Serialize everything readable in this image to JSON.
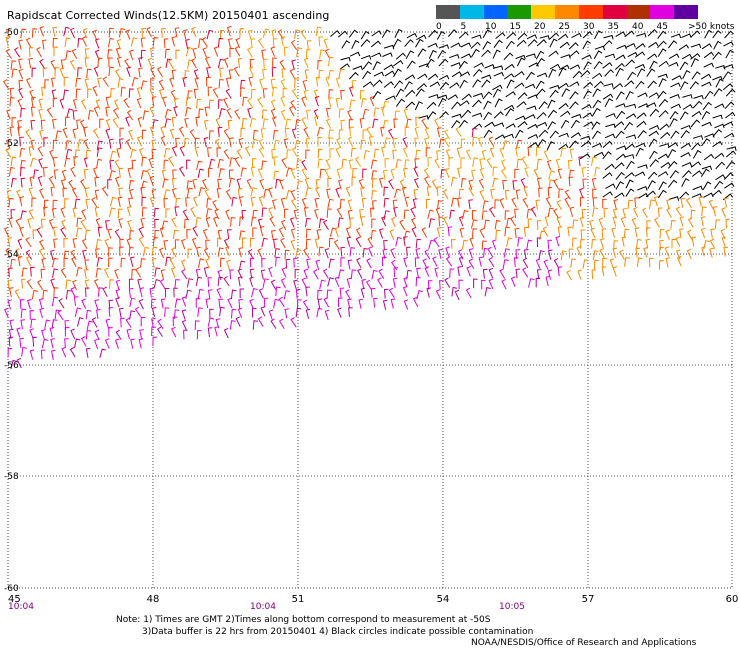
{
  "header": {
    "title": "Rapidscat Corrected Winds(12.5KM) 20150401 ascending"
  },
  "legend": {
    "colors": [
      "#555555",
      "#00b8e8",
      "#0066ff",
      "#1a9a00",
      "#ffc800",
      "#ff8800",
      "#ff3c00",
      "#e00040",
      "#b03000",
      "#e000e0",
      "#6000a0"
    ],
    "labels": [
      "0",
      "5",
      "10",
      "15",
      "20",
      "25",
      "30",
      "35",
      "40",
      "45",
      ">50 knots"
    ]
  },
  "map": {
    "lon_ticks": [
      "45",
      "48",
      "51",
      "54",
      "57",
      "60"
    ],
    "lat_ticks": [
      "-50",
      "-52",
      "-54",
      "-56",
      "-58",
      "-60"
    ],
    "time_labels": [
      "10:04",
      "10:04",
      "10:05"
    ]
  },
  "notes": {
    "line1": "Note: 1) Times are GMT 2)Times along bottom correspond to measurement at -50S",
    "line2": "3)Data buffer is 22 hrs from 20150401 4) Black circles indicate possible contamination",
    "line3": "NOAA/NESDIS/Office of Research and Applications"
  }
}
